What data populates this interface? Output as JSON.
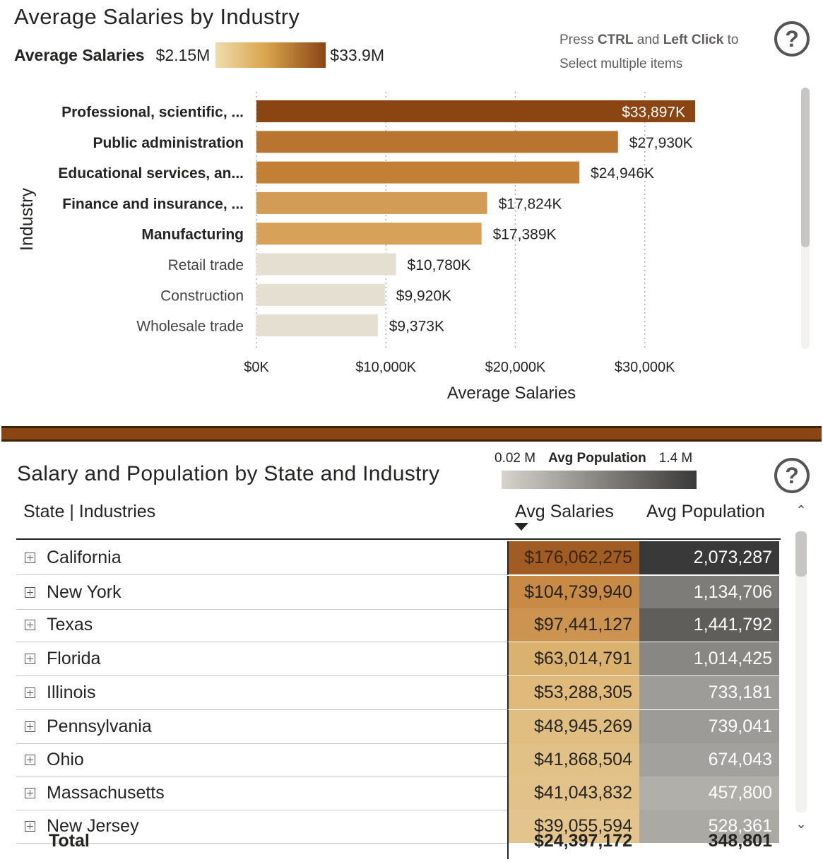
{
  "top_visual": {
    "title": "Average Salaries by Industry",
    "legend": {
      "label": "Average Salaries",
      "min": "$2.15M",
      "max": "$33.9M"
    },
    "tip": {
      "line1_pre": "Press ",
      "line1_ctrl": "CTRL",
      "line1_mid": " and ",
      "line1_click": "Left Click",
      "line1_post": " to",
      "line2": "Select multiple items"
    },
    "help_glyph": "?"
  },
  "chart_data": {
    "type": "bar",
    "orientation": "horizontal",
    "categories": [
      "Professional, scientific, ...",
      "Public administration",
      "Educational services, an...",
      "Finance and insurance, ...",
      "Manufacturing",
      "Retail trade",
      "Construction",
      "Wholesale trade"
    ],
    "values": [
      33897,
      27930,
      24946,
      17824,
      17389,
      10780,
      9920,
      9373
    ],
    "data_labels": [
      "$33,897K",
      "$27,930K",
      "$24,946K",
      "$17,824K",
      "$17,389K",
      "$10,780K",
      "$9,920K",
      "$9,373K"
    ],
    "selected": [
      true,
      true,
      true,
      true,
      true,
      false,
      false,
      false
    ],
    "colors": [
      "#8b4513",
      "#b9752f",
      "#c47f37",
      "#d39c56",
      "#d7a158",
      "#e5dfd1",
      "#e5dfd1",
      "#e5dfd1"
    ],
    "xlabel": "Average Salaries",
    "ylabel": "Industry",
    "xticks": [
      "$0K",
      "$10,000K",
      "$20,000K",
      "$30,000K"
    ],
    "xtick_values": [
      0,
      10000,
      20000,
      30000
    ],
    "xlim": [
      0,
      40000
    ],
    "grid": "vertical-dotted"
  },
  "bottom_visual": {
    "title": "Salary and Population by State and Industry",
    "pop_legend": {
      "min": "0.02 M",
      "label": "Avg Population",
      "max": "1.4 M"
    },
    "help_glyph": "?",
    "headers": {
      "state": "State | Industries",
      "salaries": "Avg Salaries",
      "population": "Avg Population"
    },
    "rows": [
      {
        "state": "California",
        "salary": "$176,062,275",
        "population": "2,073,287",
        "sal_color": "#a05c22",
        "pop_color": "#3a3939",
        "sal_text": "#3b2410"
      },
      {
        "state": "New York",
        "salary": "$104,739,940",
        "population": "1,134,706",
        "sal_color": "#c88a45",
        "pop_color": "#7d7c79",
        "sal_text": "#252423"
      },
      {
        "state": "Texas",
        "salary": "$97,441,127",
        "population": "1,441,792",
        "sal_color": "#cd9350",
        "pop_color": "#5f5e5b",
        "sal_text": "#252423"
      },
      {
        "state": "Florida",
        "salary": "$63,014,791",
        "population": "1,014,425",
        "sal_color": "#dbb16e",
        "pop_color": "#888784",
        "sal_text": "#252423"
      },
      {
        "state": "Illinois",
        "salary": "$53,288,305",
        "population": "733,181",
        "sal_color": "#dfba7b",
        "pop_color": "#9d9c98",
        "sal_text": "#252423"
      },
      {
        "state": "Pennsylvania",
        "salary": "$48,945,269",
        "population": "739,041",
        "sal_color": "#e0bd80",
        "pop_color": "#9c9b97",
        "sal_text": "#252423"
      },
      {
        "state": "Ohio",
        "salary": "$41,868,504",
        "population": "674,043",
        "sal_color": "#e2c187",
        "pop_color": "#a2a19d",
        "sal_text": "#252423"
      },
      {
        "state": "Massachusetts",
        "salary": "$41,043,832",
        "population": "457,800",
        "sal_color": "#e2c289",
        "pop_color": "#b0afa9",
        "sal_text": "#252423"
      },
      {
        "state": "New Jersey",
        "salary": "$39,055,594",
        "population": "528,361",
        "sal_color": "#e3c48c",
        "pop_color": "#aba9a4",
        "sal_text": "#252423"
      }
    ],
    "total": {
      "label": "Total",
      "salary": "$24,397,172",
      "population": "348,801"
    }
  }
}
